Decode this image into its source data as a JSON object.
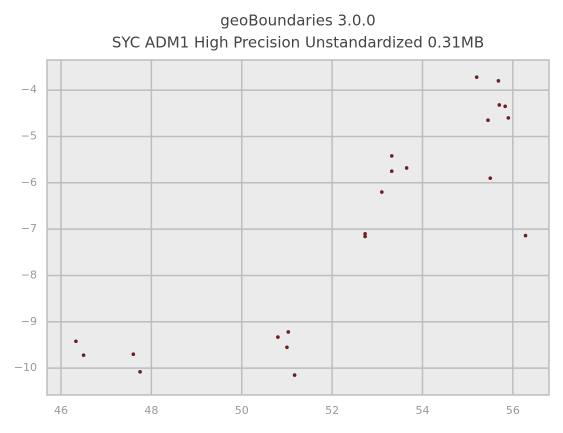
{
  "chart_data": {
    "type": "map",
    "title": "geoBoundaries 3.0.0",
    "subtitle": "SYC ADM1 High Precision Unstandardized 0.31MB",
    "x": [
      55.45,
      55.7,
      55.83,
      55.2,
      55.9,
      55.68,
      55.5,
      56.28,
      53.32,
      53.32,
      53.65,
      53.1,
      52.73,
      52.73,
      46.33,
      46.5,
      47.6,
      47.75,
      51.03,
      51.0,
      50.8,
      51.17
    ],
    "y": [
      -4.65,
      -4.32,
      -4.35,
      -3.72,
      -4.6,
      -3.8,
      -5.9,
      -7.14,
      -5.42,
      -5.75,
      -5.68,
      -6.2,
      -7.1,
      -7.16,
      -9.42,
      -9.72,
      -9.7,
      -10.08,
      -9.22,
      -9.55,
      -9.33,
      -10.15
    ],
    "color": "#6b1f1f",
    "xlim": [
      45.69,
      56.8
    ],
    "ylim": [
      -10.58,
      -3.35
    ],
    "xticks": [
      46,
      48,
      50,
      52,
      54,
      56
    ],
    "yticks": [
      {
        "value": -4,
        "label": "−4"
      },
      {
        "value": -5,
        "label": "−5"
      },
      {
        "value": -6,
        "label": "−6"
      },
      {
        "value": -7,
        "label": "−7"
      },
      {
        "value": -8,
        "label": "−8"
      },
      {
        "value": -9,
        "label": "−9"
      },
      {
        "value": -10,
        "label": "−10"
      }
    ],
    "grid": true
  }
}
